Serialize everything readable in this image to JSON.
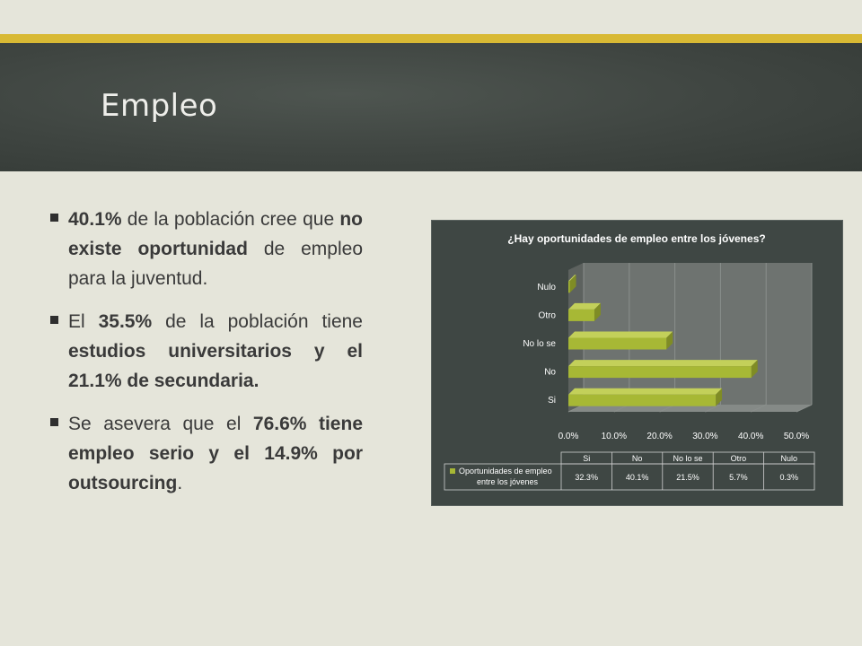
{
  "slide": {
    "title": "Empleo"
  },
  "bullets": [
    {
      "parts": [
        {
          "t": "40.1%",
          "b": true
        },
        {
          "t": " de la población cree que ",
          "b": false
        },
        {
          "t": "no existe oportunidad",
          "b": true
        },
        {
          "t": " de empleo para la juventud.",
          "b": false
        }
      ]
    },
    {
      "parts": [
        {
          "t": "El ",
          "b": false
        },
        {
          "t": "35.5%",
          "b": true
        },
        {
          "t": " de la población tiene ",
          "b": false
        },
        {
          "t": "estudios universitarios y el 21.1% de secundaria.",
          "b": true
        }
      ]
    },
    {
      "parts": [
        {
          "t": "Se asevera que el ",
          "b": false
        },
        {
          "t": "76.6% tiene empleo serio y el 14.9% por outsourcing",
          "b": true
        },
        {
          "t": ".",
          "b": false
        }
      ]
    }
  ],
  "colors": {
    "accent_bar": "#d8b934",
    "bar_fill": "#a7b835",
    "chart_bg": "#3f4744"
  },
  "chart_data": {
    "type": "bar",
    "orientation": "horizontal",
    "title": "¿Hay oportunidades de empleo entre los jóvenes?",
    "categories": [
      "Si",
      "No",
      "No lo se",
      "Otro",
      "Nulo"
    ],
    "series": [
      {
        "name": "Oportunidades de empleo entre los jóvenes",
        "values": [
          32.3,
          40.1,
          21.5,
          5.7,
          0.3
        ]
      }
    ],
    "xticks": [
      "0.0%",
      "10.0%",
      "20.0%",
      "30.0%",
      "40.0%",
      "50.0%"
    ],
    "xlim": [
      0,
      50
    ],
    "table_values": [
      "32.3%",
      "40.1%",
      "21.5%",
      "5.7%",
      "0.3%"
    ],
    "data_table": true,
    "grid": true
  }
}
